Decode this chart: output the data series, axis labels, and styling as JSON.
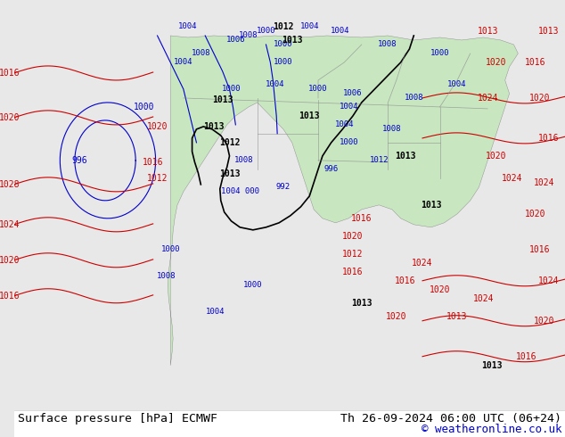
{
  "title_left": "Surface pressure [hPa] ECMWF",
  "title_right": "Th 26-09-2024 06:00 UTC (06+24)",
  "copyright": "© weatheronline.co.uk",
  "bg_color": "#e8e8e8",
  "map_bg_color": "#e0e0e0",
  "land_color": "#c8e6c0",
  "ocean_color": "#e8e8e8",
  "bottom_bar_color": "#ffffff",
  "bottom_text_color": "#000000",
  "title_fontsize": 9.5,
  "copyright_fontsize": 9,
  "contour_blue_color": "#0000cc",
  "contour_red_color": "#cc0000",
  "contour_black_color": "#000000",
  "label_fontsize": 7
}
